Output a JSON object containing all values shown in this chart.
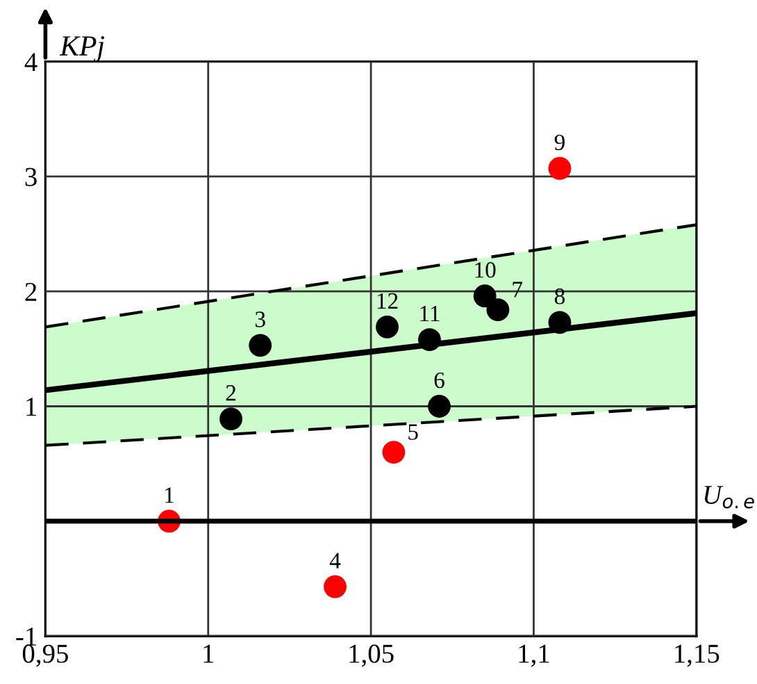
{
  "chart_data": {
    "type": "scatter",
    "xlabel": "U$_{o.e}$",
    "ylabel": "KPj",
    "xlim": [
      0.95,
      1.15
    ],
    "ylim": [
      -1,
      4
    ],
    "xticks": [
      {
        "value": 0.95,
        "label": "0,95"
      },
      1,
      {
        "value": 1.05,
        "label": "1,05"
      },
      {
        "value": 1.1,
        "label": "1,1"
      },
      {
        "value": 1.15,
        "label": "1,15"
      }
    ],
    "yticks": [
      -1,
      {
        "value": 0,
        "label": null
      },
      1,
      2,
      3,
      4
    ],
    "grid": true,
    "series": [
      {
        "marker": "circle",
        "color": "#000000",
        "x": [
          1.007,
          1.016,
          1.071,
          1.089,
          1.108,
          1.085,
          1.068,
          1.055
        ],
        "values": [
          0.89,
          1.53,
          1.0,
          1.84,
          1.73,
          1.96,
          1.58,
          1.69
        ]
      },
      {
        "marker": "circle",
        "color": "#ff0000",
        "x": [
          0.988,
          1.039,
          1.057,
          1.108
        ],
        "values": [
          0.0,
          -0.57,
          0.6,
          3.07
        ]
      },
      {
        "type": "line",
        "color": "#000000",
        "x": [
          0.95,
          1.15
        ],
        "values": [
          1.14,
          1.81
        ],
        "lower": [
          0.66,
          1.0
        ],
        "upper": [
          1.69,
          2.58
        ],
        "marker": "none"
      },
      {
        "type": "line",
        "color": "#000000",
        "line_style": "dashed",
        "x": [
          0.95,
          1.15
        ],
        "values": [
          1.69,
          2.58
        ],
        "marker": "none"
      },
      {
        "type": "line",
        "color": "#000000",
        "line_style": "dashed",
        "x": [
          0.95,
          1.15
        ],
        "values": [
          0.66,
          1.0
        ],
        "marker": "none"
      }
    ],
    "annotations": [
      {
        "text": "1",
        "x": 0.988,
        "y": 0.0
      },
      {
        "text": "2",
        "x": 1.007,
        "y": 0.89
      },
      {
        "text": "3",
        "x": 1.016,
        "y": 1.53
      },
      {
        "text": "4",
        "x": 1.039,
        "y": -0.57
      },
      {
        "text": "5",
        "x": 1.057,
        "y": 0.6
      },
      {
        "text": "6",
        "x": 1.071,
        "y": 1.0
      },
      {
        "text": "7",
        "x": 1.089,
        "y": 1.84
      },
      {
        "text": "8",
        "x": 1.108,
        "y": 1.73
      },
      {
        "text": "9",
        "x": 1.108,
        "y": 3.07
      },
      {
        "text": "10",
        "x": 1.085,
        "y": 1.96
      },
      {
        "text": "11",
        "x": 1.068,
        "y": 1.58
      },
      {
        "text": "12",
        "x": 1.055,
        "y": 1.69
      }
    ]
  }
}
